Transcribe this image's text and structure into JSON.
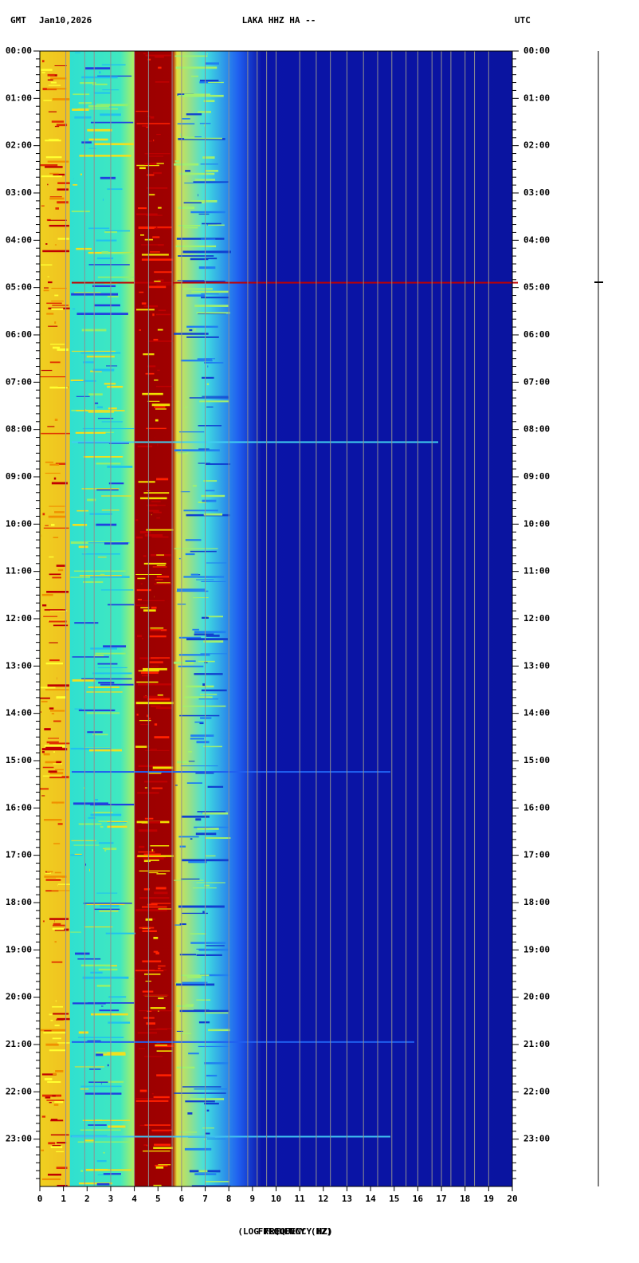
{
  "chart_data": {
    "type": "spectrogram",
    "title": "LAKA HHZ HA --",
    "left_label": "GMT",
    "date": "Jan10,2026",
    "right_label": "UTC",
    "xlabel": "(LOG FREQUENCY HZ)",
    "xlabel2": "FREQUENCY (HZ)",
    "xlim": [
      0,
      20
    ],
    "xticks": [
      0,
      1,
      2,
      3,
      4,
      5,
      6,
      7,
      8,
      9,
      10,
      11,
      12,
      13,
      14,
      15,
      16,
      17,
      18,
      19,
      20
    ],
    "ylim": [
      0,
      24
    ],
    "yticks": [
      {
        "value": 0,
        "label": "00:00"
      },
      {
        "value": 1,
        "label": "01:00"
      },
      {
        "value": 2,
        "label": "02:00"
      },
      {
        "value": 3,
        "label": "03:00"
      },
      {
        "value": 4,
        "label": "04:00"
      },
      {
        "value": 5,
        "label": "05:00"
      },
      {
        "value": 6,
        "label": "06:00"
      },
      {
        "value": 7,
        "label": "07:00"
      },
      {
        "value": 8,
        "label": "08:00"
      },
      {
        "value": 9,
        "label": "09:00"
      },
      {
        "value": 10,
        "label": "10:00"
      },
      {
        "value": 11,
        "label": "11:00"
      },
      {
        "value": 12,
        "label": "12:00"
      },
      {
        "value": 13,
        "label": "13:00"
      },
      {
        "value": 14,
        "label": "14:00"
      },
      {
        "value": 15,
        "label": "15:00"
      },
      {
        "value": 16,
        "label": "16:00"
      },
      {
        "value": 17,
        "label": "17:00"
      },
      {
        "value": 18,
        "label": "18:00"
      },
      {
        "value": 19,
        "label": "19:00"
      },
      {
        "value": 20,
        "label": "20:00"
      },
      {
        "value": 21,
        "label": "21:00"
      },
      {
        "value": 22,
        "label": "22:00"
      },
      {
        "value": 23,
        "label": "23:00"
      }
    ]
  }
}
